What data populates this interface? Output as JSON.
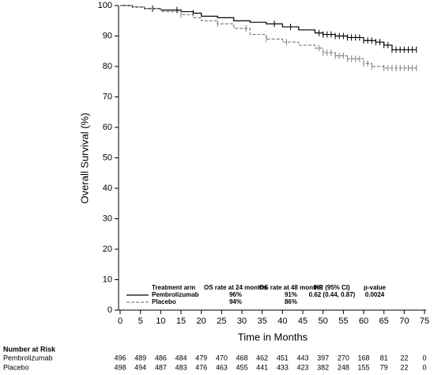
{
  "chart_data": {
    "type": "step",
    "ylabel": "Overall Survival (%)",
    "xlabel": "Time in Months",
    "xlim": [
      0,
      75
    ],
    "ylim": [
      0,
      100
    ],
    "xticks": [
      0,
      5,
      10,
      15,
      20,
      25,
      30,
      35,
      40,
      45,
      50,
      55,
      60,
      65,
      70,
      75
    ],
    "yticks": [
      0,
      10,
      20,
      30,
      40,
      50,
      60,
      70,
      80,
      90,
      100
    ],
    "series": [
      {
        "name": "Pembrolizumab",
        "color": "#000000",
        "dash": false,
        "x": [
          0,
          3,
          6,
          10,
          15,
          18,
          20,
          24,
          28,
          32,
          36,
          40,
          44,
          48,
          50,
          53,
          56,
          60,
          63,
          65,
          67,
          73
        ],
        "values": [
          100,
          99.5,
          99,
          98.5,
          98,
          97.5,
          96.5,
          96,
          95,
          94.5,
          94,
          93,
          92,
          91,
          90.5,
          90,
          89.5,
          88.5,
          88,
          87,
          85.5,
          85.5
        ],
        "censored": [
          8,
          14,
          18,
          38,
          42,
          49,
          50,
          51,
          52,
          53,
          54,
          55,
          56,
          57,
          58,
          59,
          60,
          61,
          62,
          63,
          64,
          65,
          66,
          67,
          68,
          69,
          70,
          71,
          72,
          73
        ]
      },
      {
        "name": "Placebo",
        "color": "#808080",
        "dash": true,
        "x": [
          0,
          3,
          6,
          10,
          15,
          18,
          20,
          24,
          28,
          32,
          36,
          40,
          44,
          48,
          50,
          53,
          56,
          60,
          62,
          65,
          73
        ],
        "values": [
          100,
          99.5,
          99,
          98,
          97,
          96,
          95,
          94,
          92.5,
          90.5,
          89,
          88,
          87,
          86,
          84.5,
          83.5,
          82.5,
          81,
          80,
          79.5,
          79.5
        ],
        "censored": [
          15,
          24,
          31,
          36,
          41,
          49,
          50,
          51,
          52,
          53,
          54,
          55,
          56,
          57,
          58,
          59,
          60,
          61,
          62,
          65,
          66,
          67,
          68,
          69,
          70,
          71,
          72,
          73
        ]
      }
    ],
    "legend_table": {
      "headers": [
        "Treatment arm",
        "OS rate at 24 months",
        "OS rate at 48 months",
        "HR (95% CI)",
        "p-value"
      ],
      "rows": [
        [
          "Pembrolizumab",
          "96%",
          "91%",
          "0.62 (0.44, 0.87)",
          "0.0024"
        ],
        [
          "Placebo",
          "94%",
          "86%"
        ]
      ]
    },
    "at_risk": {
      "title": "Number at Risk",
      "rows": [
        {
          "name": "Pembrolizumab",
          "values": [
            496,
            489,
            486,
            484,
            479,
            470,
            468,
            462,
            451,
            443,
            397,
            270,
            168,
            81,
            22,
            0
          ]
        },
        {
          "name": "Placebo",
          "values": [
            498,
            494,
            487,
            483,
            476,
            463,
            455,
            441,
            433,
            423,
            382,
            248,
            155,
            79,
            22,
            0
          ]
        }
      ]
    }
  }
}
